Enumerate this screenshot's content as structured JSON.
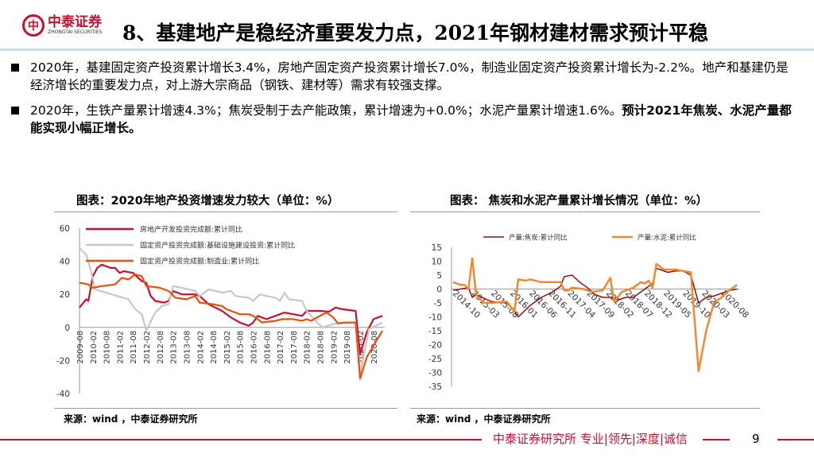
{
  "header": {
    "logo_cn": "中泰证券",
    "logo_en": "ZHONGTAI SECURITIES",
    "title": "8、基建地产是稳经济重要发力点，2021年钢材建材需求预计平稳"
  },
  "bullets": [
    {
      "text": "2020年，基建固定资产投资累计增长3.4%，房地产固定资产投资累计增长7.0%，制造业固定资产投资累计增长为-2.2%。地产和基建仍是经济增长的重要发力点，对上游大宗商品（钢铁、建材等）需求有较强支撑。",
      "bold": ""
    },
    {
      "text": "2020年，生铁产量累计增速4.3%；焦炭受制于去产能政策，累计增速为+0.0%；水泥产量累计增速1.6%。",
      "bold": "预计2021年焦炭、水泥产量都能实现小幅正增长。"
    }
  ],
  "chart_titles": [
    "图表：2020年地产投资增速发力较大（单位：%）",
    "图表： 焦炭和水泥产量累计增长情况（单位：%）"
  ],
  "sources": [
    "来源：wind ，中泰证券研究所",
    "来源：wind ，中泰证券研究所"
  ],
  "footer": {
    "text": "中泰证券研究所 专业|领先|深度|诚信",
    "page": "9",
    "color": "#c8102e"
  },
  "chart_data": [
    {
      "type": "line",
      "ylim": [
        -40,
        60
      ],
      "yticks": [
        60,
        40,
        20,
        0,
        -20,
        -40
      ],
      "grid": false,
      "legend": "top",
      "xticks": [
        "2009-08",
        "2010-02",
        "2010-08",
        "2011-02",
        "2011-08",
        "2012-02",
        "2012-08",
        "2013-02",
        "2013-08",
        "2014-02",
        "2014-08",
        "2015-02",
        "2015-08",
        "2016-02",
        "2016-08",
        "2017-02",
        "2017-08",
        "2018-02",
        "2018-08",
        "2019-02",
        "2019-08",
        "2020-02",
        "2020-08"
      ],
      "xrange": [
        "2009-08",
        "2020-12"
      ],
      "series": [
        {
          "name": "房地产开发投资完成额:累计同比",
          "color": "#c8102e",
          "points": [
            [
              "2009-08",
              12
            ],
            [
              "2009-11",
              17
            ],
            [
              "2009-12",
              16
            ],
            [
              "2010-02",
              31
            ],
            [
              "2010-04",
              36
            ],
            [
              "2010-06",
              38
            ],
            [
              "2010-10",
              36
            ],
            [
              "2010-12",
              36
            ],
            [
              "2011-02",
              33
            ],
            [
              "2011-04",
              34
            ],
            [
              "2011-08",
              33
            ],
            [
              "2011-12",
              28
            ],
            [
              "2012-02",
              27
            ],
            [
              "2012-04",
              19
            ],
            [
              "2012-06",
              16
            ],
            [
              "2012-10",
              15
            ],
            [
              "2012-12",
              16
            ],
            [
              "2013-02",
              22
            ],
            [
              "2013-06",
              20
            ],
            [
              "2013-12",
              20
            ],
            [
              "2014-02",
              19
            ],
            [
              "2014-06",
              14
            ],
            [
              "2014-12",
              10
            ],
            [
              "2015-04",
              6
            ],
            [
              "2015-08",
              3
            ],
            [
              "2015-12",
              1
            ],
            [
              "2016-02",
              3
            ],
            [
              "2016-04",
              7
            ],
            [
              "2016-08",
              5
            ],
            [
              "2016-12",
              7
            ],
            [
              "2017-04",
              9
            ],
            [
              "2017-08",
              8
            ],
            [
              "2017-12",
              7
            ],
            [
              "2018-02",
              10
            ],
            [
              "2018-08",
              10
            ],
            [
              "2018-12",
              9.5
            ],
            [
              "2019-03",
              12
            ],
            [
              "2019-06",
              11
            ],
            [
              "2019-12",
              10
            ],
            [
              "2020-02",
              -16
            ],
            [
              "2020-05",
              -3
            ],
            [
              "2020-08",
              5
            ],
            [
              "2020-12",
              7
            ]
          ]
        },
        {
          "name": "固定资产投资完成额:基础设施建设投资:累计同比",
          "color": "#c8c8c8",
          "points": [
            [
              "2009-08",
              48
            ],
            [
              "2009-11",
              44
            ],
            [
              "2010-01",
              35
            ],
            [
              "2010-03",
              23
            ],
            [
              "2010-08",
              21
            ],
            [
              "2011-01",
              19
            ],
            [
              "2011-06",
              17
            ],
            [
              "2011-09",
              11
            ],
            [
              "2011-12",
              8
            ],
            [
              "2012-02",
              -2
            ],
            [
              "2012-06",
              9
            ],
            [
              "2012-09",
              13
            ],
            [
              "2012-12",
              14
            ],
            [
              "2013-02",
              25
            ],
            [
              "2013-06",
              24
            ],
            [
              "2013-12",
              22
            ],
            [
              "2014-02",
              19
            ],
            [
              "2014-06",
              23
            ],
            [
              "2014-12",
              21
            ],
            [
              "2015-04",
              22
            ],
            [
              "2015-06",
              19
            ],
            [
              "2015-12",
              18
            ],
            [
              "2016-02",
              16
            ],
            [
              "2016-05",
              20
            ],
            [
              "2016-08",
              19
            ],
            [
              "2016-12",
              18
            ],
            [
              "2017-02",
              16
            ],
            [
              "2017-04",
              21
            ],
            [
              "2017-06",
              17
            ],
            [
              "2017-12",
              16
            ],
            [
              "2018-02",
              10
            ],
            [
              "2018-06",
              4
            ],
            [
              "2018-09",
              0
            ],
            [
              "2019-02",
              2
            ],
            [
              "2019-06",
              3
            ],
            [
              "2019-12",
              3
            ],
            [
              "2020-02",
              -28
            ],
            [
              "2020-06",
              -1
            ],
            [
              "2020-12",
              3
            ]
          ]
        },
        {
          "name": "固定资产投资完成额:制造业:累计同比",
          "color": "#e8500f",
          "points": [
            [
              "2009-08",
              27
            ],
            [
              "2009-12",
              26
            ],
            [
              "2010-02",
              24
            ],
            [
              "2010-06",
              25
            ],
            [
              "2010-12",
              26
            ],
            [
              "2011-03",
              30
            ],
            [
              "2011-06",
              29
            ],
            [
              "2011-09",
              32
            ],
            [
              "2011-12",
              31
            ],
            [
              "2012-02",
              25
            ],
            [
              "2012-08",
              24
            ],
            [
              "2012-12",
              22
            ],
            [
              "2013-03",
              18
            ],
            [
              "2013-08",
              17
            ],
            [
              "2013-12",
              19
            ],
            [
              "2014-02",
              15
            ],
            [
              "2014-08",
              14
            ],
            [
              "2014-12",
              13
            ],
            [
              "2015-02",
              11
            ],
            [
              "2015-08",
              8
            ],
            [
              "2015-12",
              8
            ],
            [
              "2016-02",
              7
            ],
            [
              "2016-06",
              3
            ],
            [
              "2016-12",
              4
            ],
            [
              "2017-03",
              5
            ],
            [
              "2017-08",
              5
            ],
            [
              "2017-12",
              4
            ],
            [
              "2018-02",
              5
            ],
            [
              "2018-04",
              4
            ],
            [
              "2018-08",
              7
            ],
            [
              "2018-11",
              9
            ],
            [
              "2019-02",
              6
            ],
            [
              "2019-04",
              2.5
            ],
            [
              "2019-08",
              3
            ],
            [
              "2019-12",
              3
            ],
            [
              "2020-02",
              -31
            ],
            [
              "2020-05",
              -18
            ],
            [
              "2020-08",
              -11
            ],
            [
              "2020-12",
              -2
            ]
          ]
        }
      ]
    },
    {
      "type": "line",
      "ylim": [
        -35,
        15
      ],
      "yticks": [
        15,
        10,
        5,
        0,
        -5,
        -10,
        -15,
        -20,
        -25,
        -30,
        -35
      ],
      "grid": false,
      "legend": "top",
      "xticks": [
        "2014-10",
        "2015-03",
        "2015-08",
        "2016-01",
        "2016-06",
        "2016-11",
        "2017-04",
        "2017-09",
        "2018-02",
        "2018-07",
        "2018-12",
        "2019-05",
        "2019-10",
        "2020-03",
        "2020-08"
      ],
      "xrange": [
        "2014-10",
        "2020-12"
      ],
      "series": [
        {
          "name": "产量:焦炭:累计同比",
          "color": "#8b1010",
          "points": [
            [
              "2014-10",
              -0.5
            ],
            [
              "2014-12",
              0
            ],
            [
              "2015-02",
              0.5
            ],
            [
              "2015-03",
              -3
            ],
            [
              "2015-04",
              -2
            ],
            [
              "2015-08",
              -4.5
            ],
            [
              "2015-12",
              -5
            ],
            [
              "2016-02",
              -8
            ],
            [
              "2016-03",
              -10
            ],
            [
              "2016-06",
              -6
            ],
            [
              "2016-09",
              -3
            ],
            [
              "2016-12",
              -1
            ],
            [
              "2017-02",
              1
            ],
            [
              "2017-03",
              4.5
            ],
            [
              "2017-05",
              5
            ],
            [
              "2017-07",
              2.5
            ],
            [
              "2017-09",
              0.5
            ],
            [
              "2017-11",
              -2
            ],
            [
              "2018-01",
              -3
            ],
            [
              "2018-03",
              -3
            ],
            [
              "2018-05",
              -4
            ],
            [
              "2018-07",
              -3
            ],
            [
              "2018-09",
              -3
            ],
            [
              "2018-12",
              0
            ],
            [
              "2019-02",
              2
            ],
            [
              "2019-03",
              7.5
            ],
            [
              "2019-06",
              6
            ],
            [
              "2019-08",
              6.5
            ],
            [
              "2019-10",
              6.5
            ],
            [
              "2019-12",
              5
            ],
            [
              "2020-02",
              -5
            ],
            [
              "2020-04",
              -3
            ],
            [
              "2020-06",
              -2.5
            ],
            [
              "2020-08",
              -1.5
            ],
            [
              "2020-10",
              -0.5
            ],
            [
              "2020-12",
              0
            ]
          ]
        },
        {
          "name": "产量:水泥:累计同比",
          "color": "#f08a30",
          "points": [
            [
              "2014-10",
              2.5
            ],
            [
              "2014-12",
              1.5
            ],
            [
              "2015-01",
              1.5
            ],
            [
              "2015-02",
              0
            ],
            [
              "2015-03",
              11
            ],
            [
              "2015-04",
              -2
            ],
            [
              "2015-06",
              -5
            ],
            [
              "2015-08",
              -5
            ],
            [
              "2015-12",
              -4.5
            ],
            [
              "2016-02",
              -8
            ],
            [
              "2016-03",
              3.5
            ],
            [
              "2016-05",
              3
            ],
            [
              "2016-06",
              3.5
            ],
            [
              "2016-09",
              2.5
            ],
            [
              "2016-12",
              2.5
            ],
            [
              "2017-02",
              2.5
            ],
            [
              "2017-03",
              -0.5
            ],
            [
              "2017-04",
              -0.5
            ],
            [
              "2017-05",
              0.5
            ],
            [
              "2017-08",
              0
            ],
            [
              "2017-10",
              -1
            ],
            [
              "2018-01",
              -0.5
            ],
            [
              "2018-03",
              4
            ],
            [
              "2018-04",
              -4.5
            ],
            [
              "2018-06",
              -1
            ],
            [
              "2018-09",
              0.5
            ],
            [
              "2018-11",
              2.5
            ],
            [
              "2018-12",
              2
            ],
            [
              "2019-01",
              3
            ],
            [
              "2019-02",
              0.5
            ],
            [
              "2019-03",
              9
            ],
            [
              "2019-05",
              7
            ],
            [
              "2019-08",
              7
            ],
            [
              "2019-10",
              6.5
            ],
            [
              "2019-12",
              6
            ],
            [
              "2020-02",
              -29.5
            ],
            [
              "2020-04",
              -15
            ],
            [
              "2020-06",
              -5
            ],
            [
              "2020-08",
              -3
            ],
            [
              "2020-10",
              -0.5
            ],
            [
              "2020-12",
              1.5
            ]
          ]
        }
      ]
    }
  ]
}
